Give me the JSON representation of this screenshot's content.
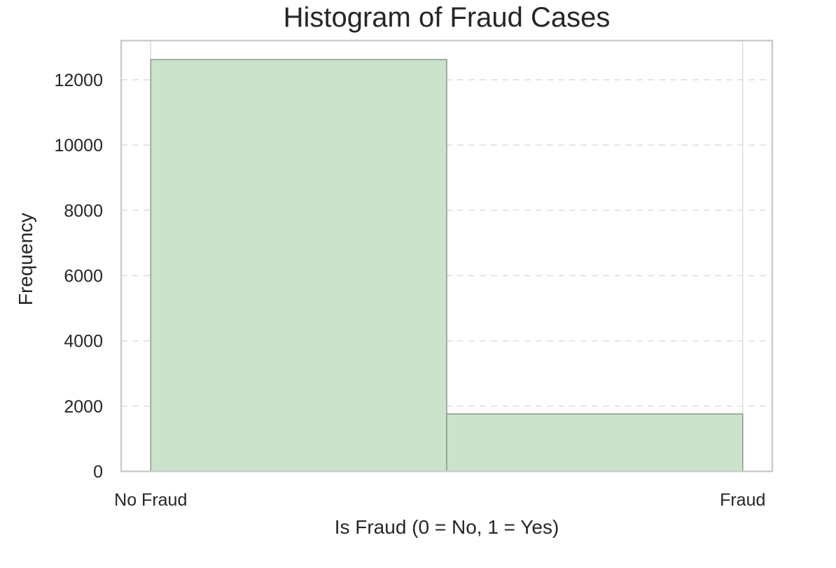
{
  "chart_data": {
    "type": "bar",
    "title": "Histogram of Fraud Cases",
    "xlabel": "Is Fraud (0 = No, 1 = Yes)",
    "ylabel": "Frequency",
    "x_tick_labels": [
      "No Fraud",
      "Fraud"
    ],
    "x_tick_positions": [
      0,
      1
    ],
    "xlim": [
      -0.05,
      1.05
    ],
    "bins": [
      {
        "start": 0,
        "end": 0.5,
        "value": 12620
      },
      {
        "start": 0.5,
        "end": 1,
        "value": 1760
      }
    ],
    "ylim": [
      0,
      13200
    ],
    "y_ticks": [
      0,
      2000,
      4000,
      6000,
      8000,
      10000,
      12000
    ],
    "grid": {
      "y": true,
      "y_style": "dashed",
      "x": true
    },
    "colors": {
      "bar_fill": "#cbe3cb",
      "bar_edge": "#8a978a",
      "grid": "#dddddd",
      "spine": "#cccccc"
    }
  }
}
